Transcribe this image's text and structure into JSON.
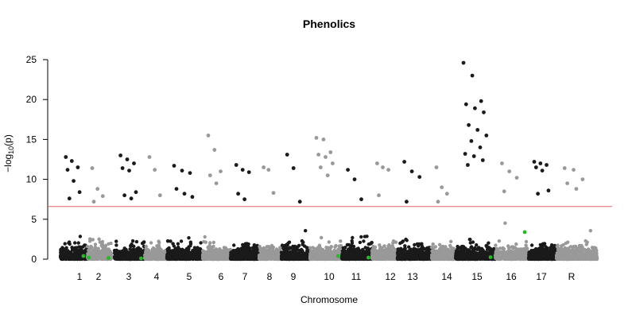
{
  "chart_data": {
    "type": "scatter",
    "title": "Phenolics",
    "xlabel": "Chromosome",
    "ylabel_prefix": "−log",
    "ylabel_sub": "10",
    "ylabel_suffix": "(p)",
    "ylim": [
      0,
      25
    ],
    "yticks": [
      0,
      5,
      10,
      15,
      20,
      25
    ],
    "threshold": 6.6,
    "colors": {
      "odd": "#1a1a1a",
      "even": "#999999",
      "threshold": "#e06666",
      "highlight": "#22bb22"
    },
    "chromosomes": [
      {
        "label": "1",
        "peaks": [
          12.8,
          12.3,
          11.5,
          11.2,
          9.8,
          8.4,
          7.6
        ]
      },
      {
        "label": "2",
        "peaks": [
          11.4,
          8.8,
          7.9,
          7.2
        ]
      },
      {
        "label": "3",
        "peaks": [
          13.0,
          12.5,
          12.0,
          11.4,
          11.1,
          8.4,
          8.0,
          7.6
        ]
      },
      {
        "label": "4",
        "peaks": [
          12.8,
          11.2,
          8.0
        ]
      },
      {
        "label": "5",
        "peaks": [
          11.7,
          11.1,
          10.8,
          8.8,
          8.2,
          7.8
        ]
      },
      {
        "label": "6",
        "peaks": [
          15.5,
          13.7,
          11.0,
          10.5,
          9.5
        ]
      },
      {
        "label": "7",
        "peaks": [
          11.8,
          11.2,
          10.9,
          8.2,
          7.5
        ]
      },
      {
        "label": "8",
        "peaks": [
          11.5,
          11.2,
          8.3
        ]
      },
      {
        "label": "9",
        "peaks": [
          13.1,
          11.4,
          7.2
        ]
      },
      {
        "label": "10",
        "peaks": [
          15.2,
          15.0,
          13.4,
          13.1,
          12.8,
          12.0,
          11.5,
          10.5
        ]
      },
      {
        "label": "11",
        "peaks": [
          11.2,
          10.0,
          7.5
        ]
      },
      {
        "label": "12",
        "peaks": [
          12.0,
          11.5,
          11.2,
          8.0
        ]
      },
      {
        "label": "13",
        "peaks": [
          12.2,
          11.0,
          10.3,
          7.2
        ]
      },
      {
        "label": "14",
        "peaks": [
          11.5,
          9.0,
          8.2,
          7.2
        ]
      },
      {
        "label": "15",
        "peaks": [
          24.6,
          23.0,
          19.8,
          19.4,
          18.9,
          18.4,
          16.8,
          16.2,
          15.5,
          14.8,
          14.0,
          13.2,
          12.9,
          12.4,
          11.8
        ]
      },
      {
        "label": "16",
        "peaks": [
          12.0,
          11.0,
          10.2,
          8.5
        ]
      },
      {
        "label": "17",
        "peaks": [
          12.2,
          12.0,
          11.8,
          11.5,
          11.1,
          8.6,
          8.2
        ]
      },
      {
        "label": "R",
        "peaks": [
          11.4,
          11.2,
          10.0,
          9.5,
          8.8
        ]
      }
    ],
    "highlight_points": [
      {
        "chrom": "1",
        "y": 0.4
      },
      {
        "chrom": "1",
        "y": 0.2
      },
      {
        "chrom": "2",
        "y": 0.15
      },
      {
        "chrom": "3",
        "y": 0.1
      },
      {
        "chrom": "10",
        "y": 0.4
      },
      {
        "chrom": "11",
        "y": 0.2
      },
      {
        "chrom": "15",
        "y": 0.25
      },
      {
        "chrom": "16",
        "y": 3.4
      }
    ]
  }
}
